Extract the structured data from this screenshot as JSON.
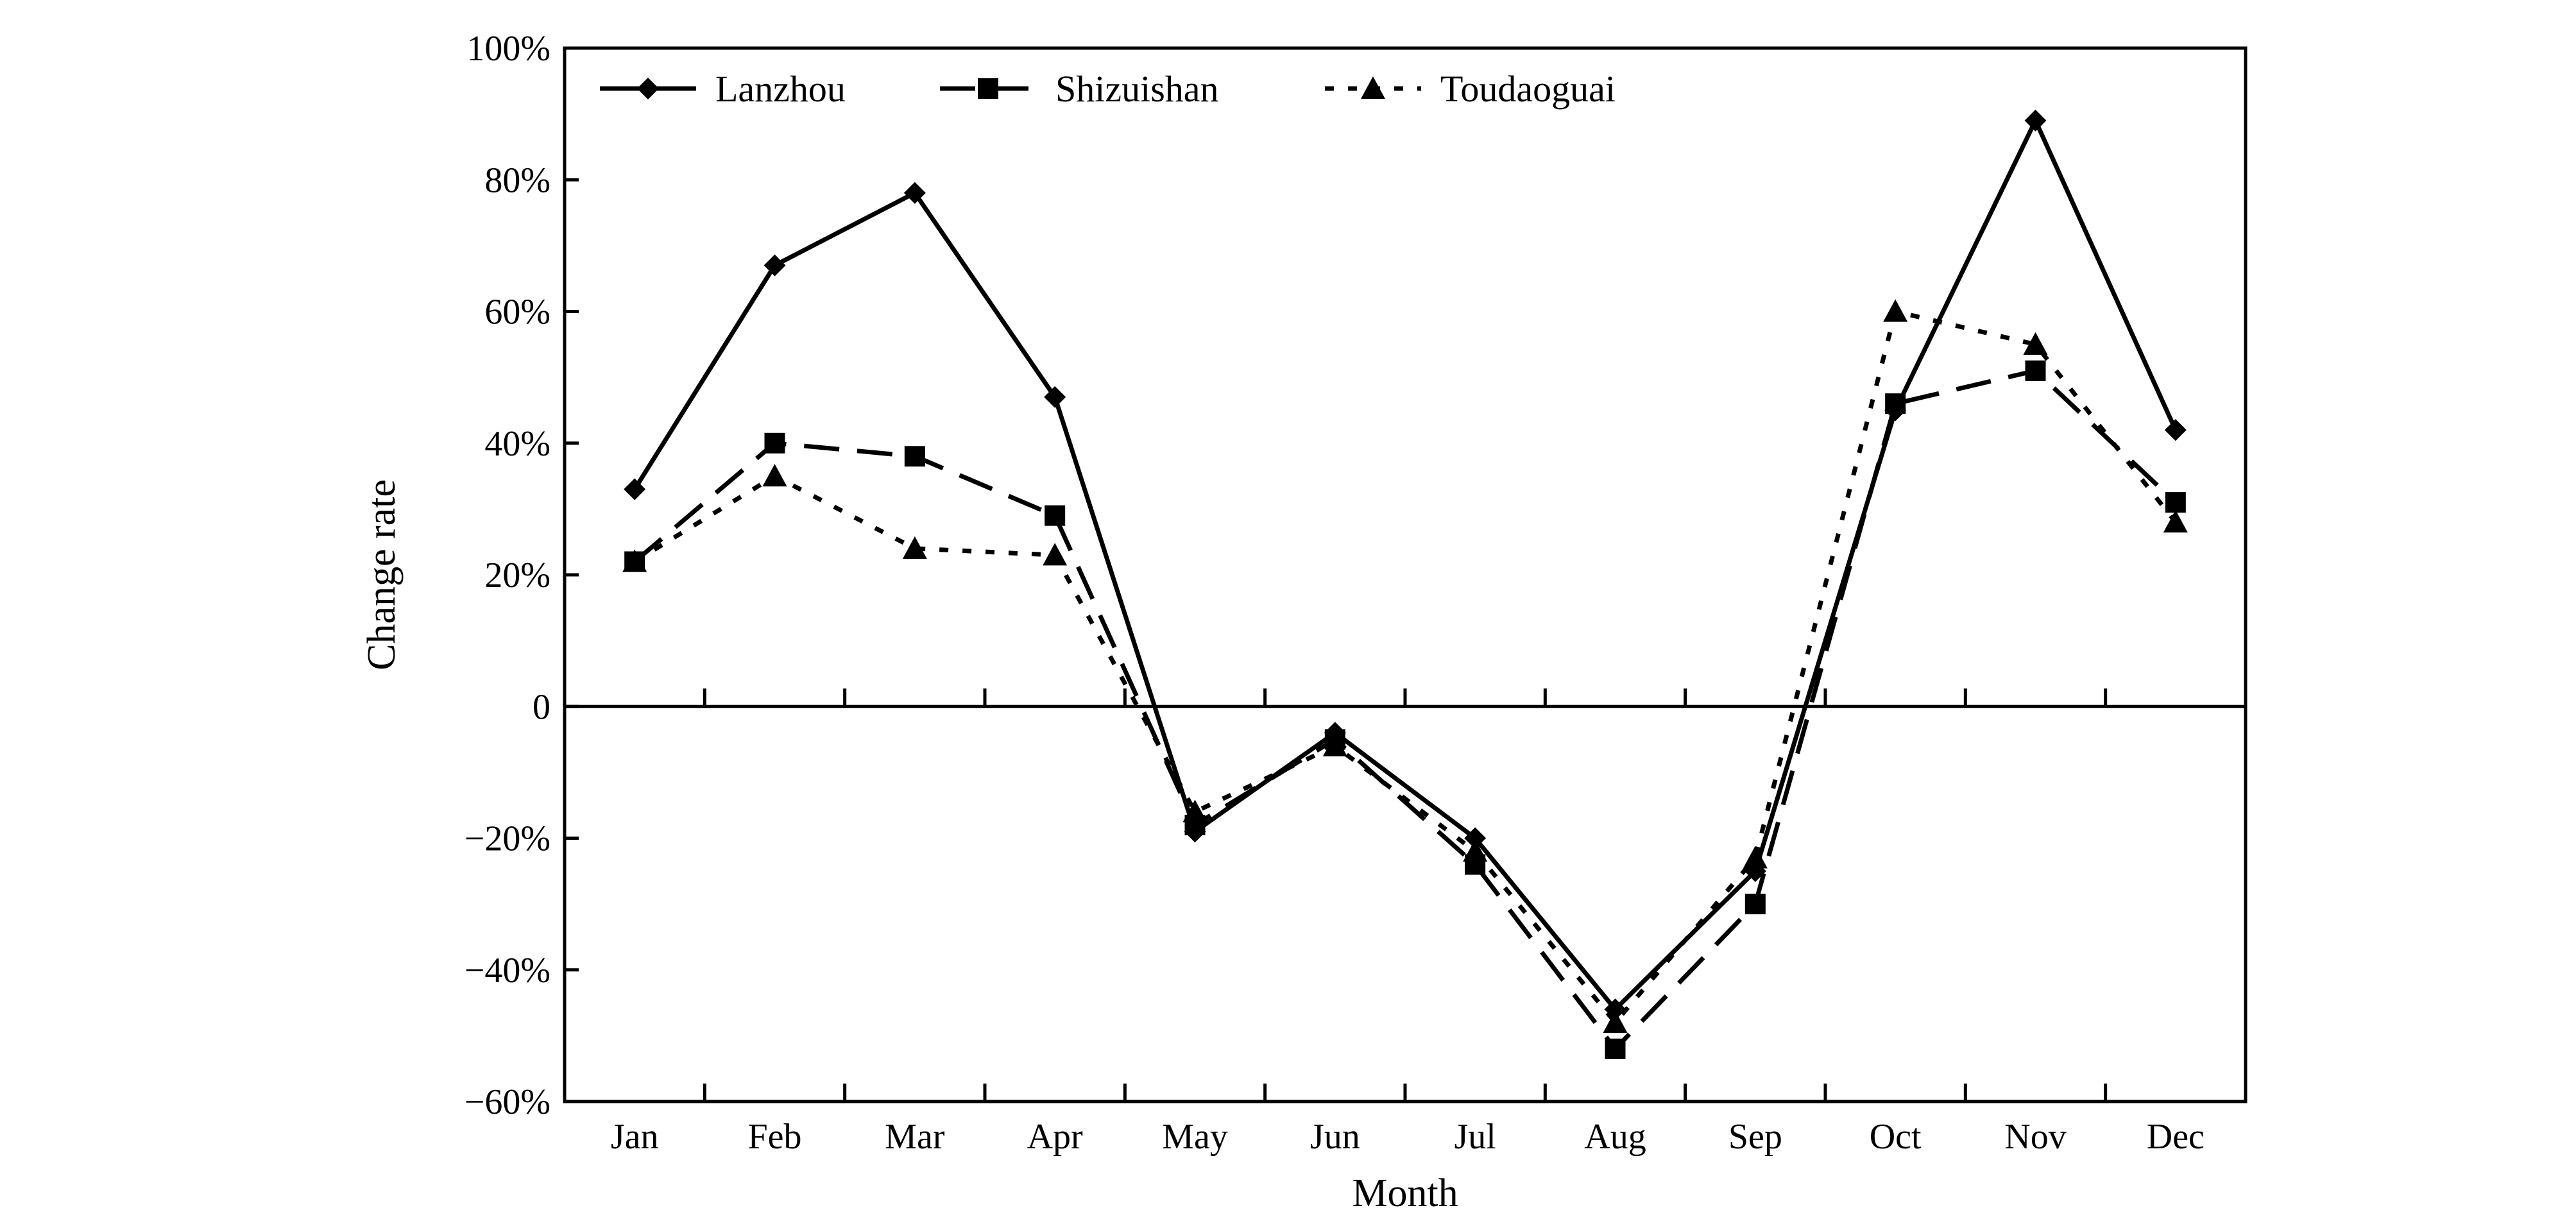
{
  "chart_data": {
    "type": "line",
    "title": "",
    "xlabel": "Month",
    "ylabel": "Change rate",
    "categories": [
      "Jan",
      "Feb",
      "Mar",
      "Apr",
      "May",
      "Jun",
      "Jul",
      "Aug",
      "Sep",
      "Oct",
      "Nov",
      "Dec"
    ],
    "ylim": [
      -60,
      100
    ],
    "yticks": [
      -60,
      -40,
      -20,
      0,
      20,
      40,
      60,
      80,
      100
    ],
    "ytick_labels": [
      "−60%",
      "−40%",
      "−20%",
      "0",
      "20%",
      "40%",
      "60%",
      "80%",
      "100%"
    ],
    "grid": false,
    "legend_position": "top-left",
    "series": [
      {
        "name": "Lanzhou",
        "marker": "diamond",
        "line_style": "solid",
        "values": [
          33,
          67,
          78,
          47,
          -19,
          -4,
          -20,
          -46,
          -25,
          45,
          89,
          42
        ]
      },
      {
        "name": "Shizuishan",
        "marker": "square",
        "line_style": "dashed",
        "values": [
          22,
          40,
          38,
          29,
          -18,
          -5,
          -24,
          -52,
          -30,
          46,
          51,
          31
        ]
      },
      {
        "name": "Toudaoguai",
        "marker": "triangle",
        "line_style": "dotted",
        "values": [
          22,
          35,
          24,
          23,
          -16,
          -6,
          -22,
          -48,
          -23,
          60,
          55,
          28
        ]
      }
    ],
    "colors": {
      "line": "#000000",
      "axis": "#000000",
      "background": "#ffffff"
    }
  }
}
